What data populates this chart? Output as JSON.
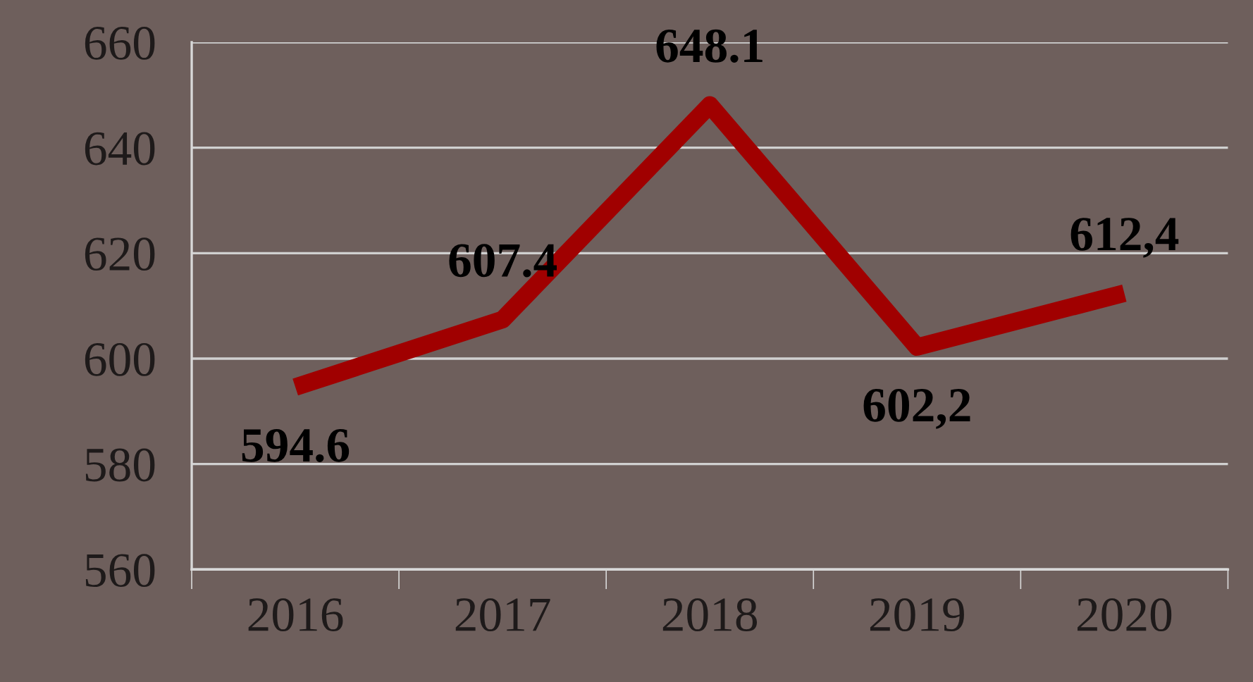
{
  "chart_data": {
    "type": "line",
    "categories": [
      "2016",
      "2017",
      "2018",
      "2019",
      "2020"
    ],
    "series": [
      {
        "color": "#a00000",
        "values": [
          594.6,
          607.4,
          648.1,
          602.2,
          612.4
        ],
        "value_labels": [
          "594.6",
          "607.4",
          "648.1",
          "602,2",
          "612,4"
        ]
      }
    ],
    "ylim": [
      560,
      660
    ],
    "yticks": [
      560,
      580,
      600,
      620,
      640,
      660
    ],
    "grid": "y",
    "legend": false,
    "marker": "none",
    "line_style": "solid"
  }
}
